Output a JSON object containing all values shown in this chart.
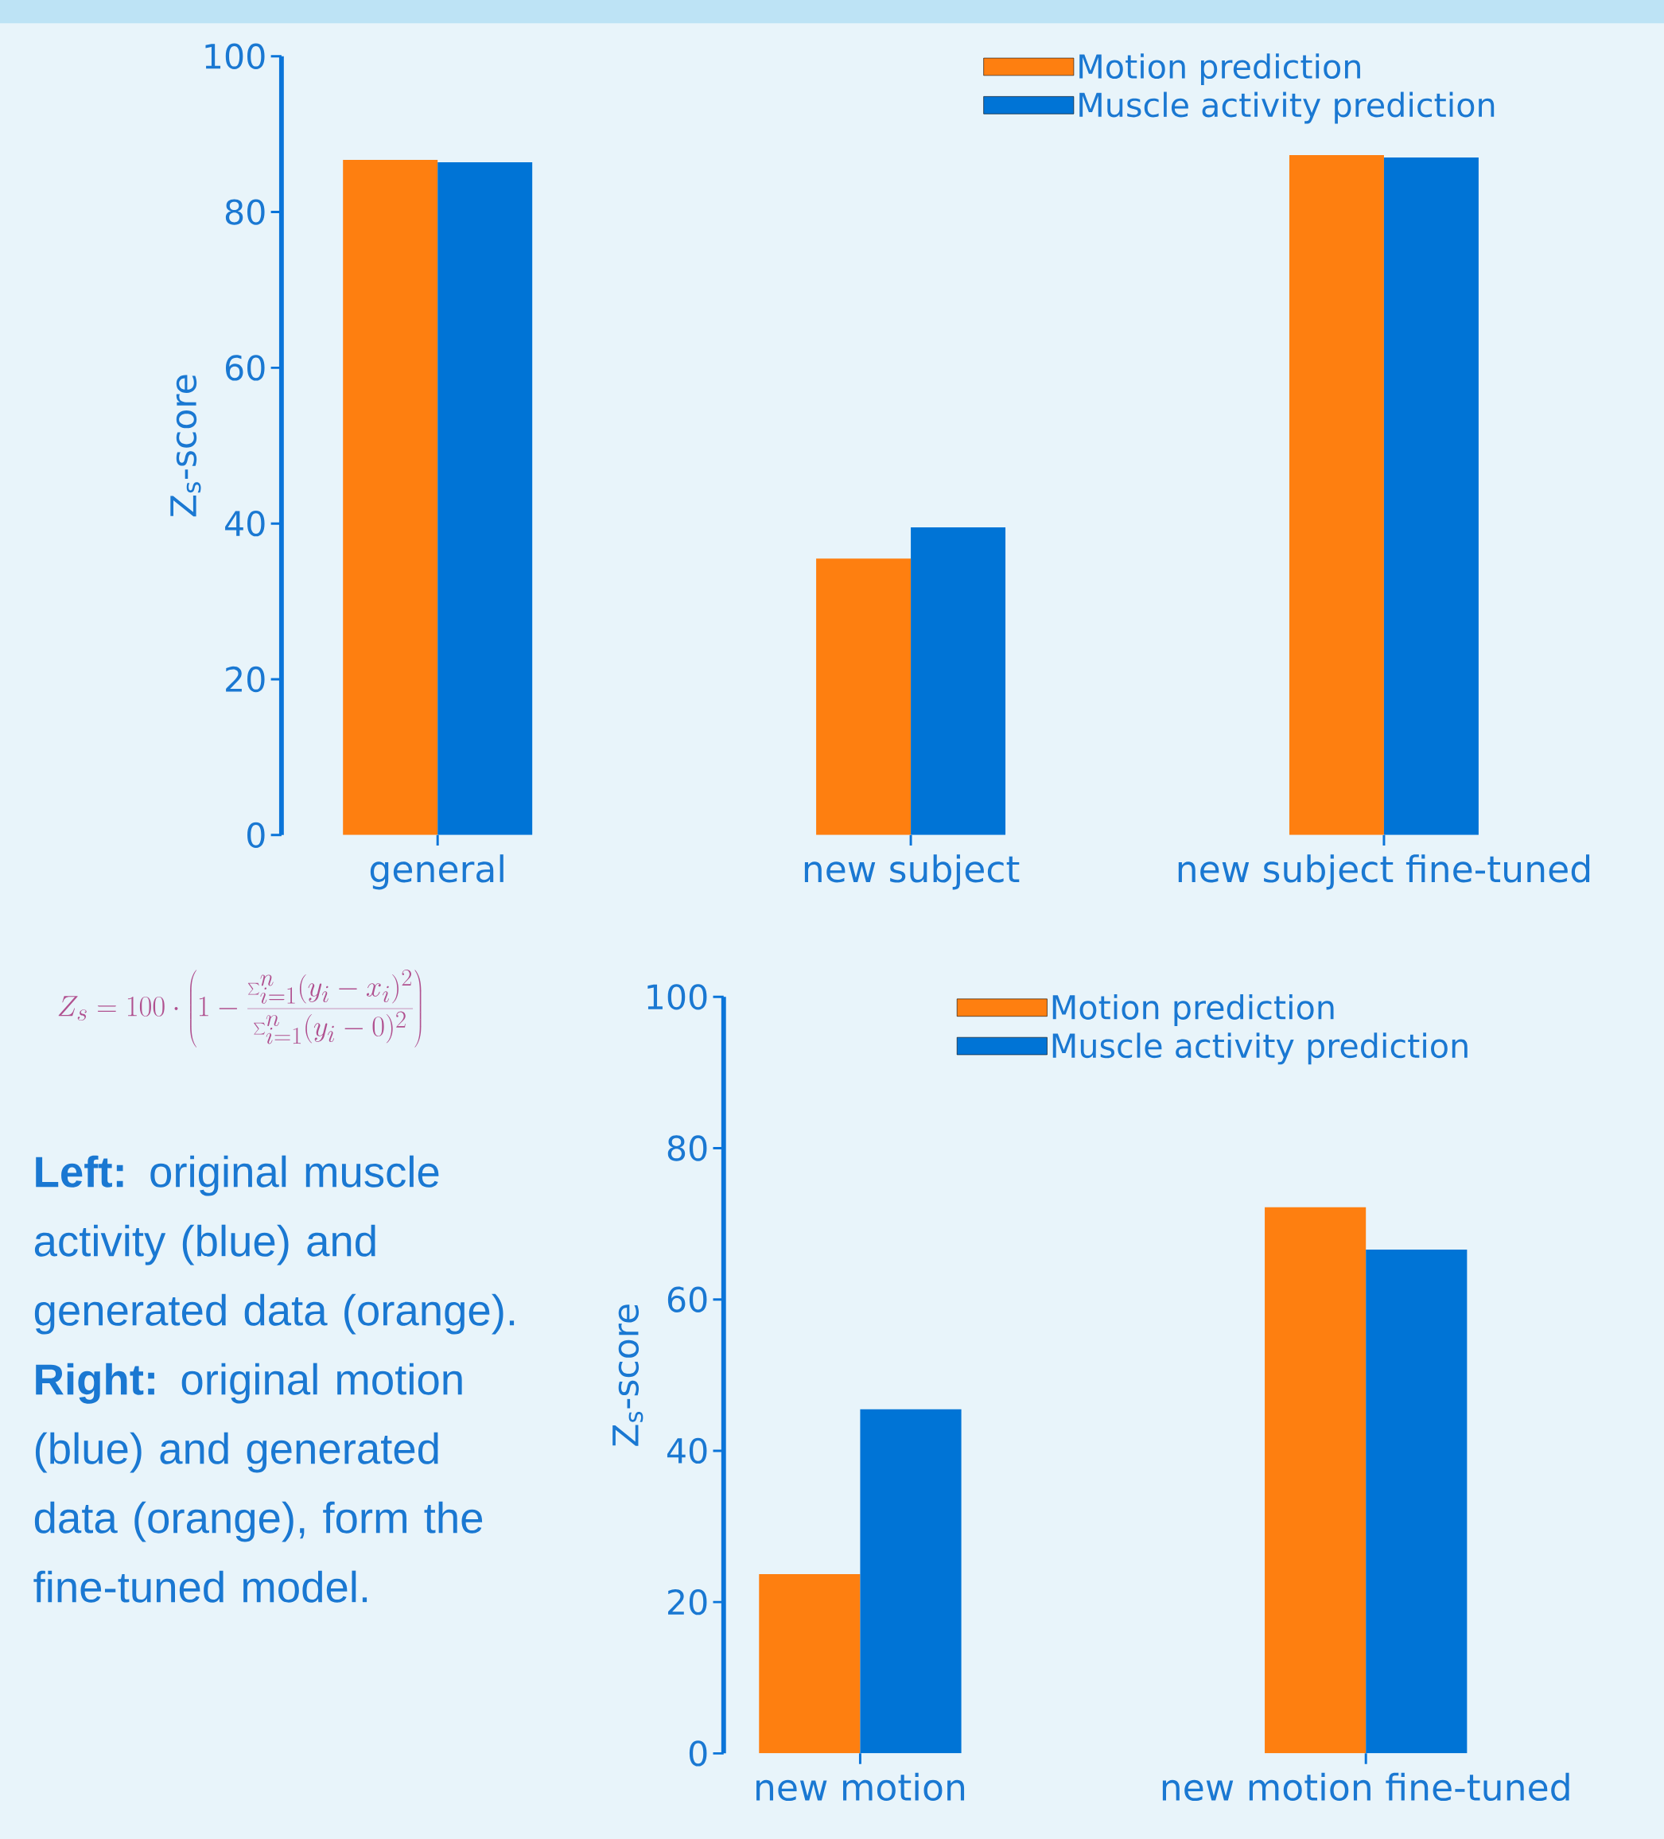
{
  "chart_data": [
    {
      "type": "bar",
      "categories": [
        "general",
        "new subject",
        "new subject fine-tuned"
      ],
      "ylabel": "Z$_{s}$-score",
      "ylim": [
        0,
        100
      ],
      "yticks": [
        0,
        20,
        40,
        60,
        80,
        100
      ],
      "legend": "top right",
      "series": [
        {
          "name": "Motion prediction",
          "color": "#fe7f10",
          "values": [
            86.7,
            35.5,
            87.3
          ]
        },
        {
          "name": "Muscle activity prediction",
          "color": "#0074d6",
          "values": [
            86.4,
            39.5,
            87.0
          ]
        }
      ]
    },
    {
      "type": "other",
      "annotations": [
        "Z_{s} = 100 \\cdot \\left(1-\\frac{\\sum_{i=1}^{n}(y_i-x_i)^2}{\\sum_{i=1}^{n}(y_i-0)^2}\\right)",
        "**Left:** original muscle activity (blue) and generated data (orange). **Right:** original motion (blue) and generated data (orange), form the fine-tuned model."
      ]
    },
    {
      "type": "bar",
      "categories": [
        "new motion",
        "new motion fine-tuned"
      ],
      "ylabel": "Z$_{s}$-score",
      "ylim": [
        0,
        100
      ],
      "yticks": [
        0,
        20,
        40,
        60,
        80,
        100
      ],
      "legend": "top right",
      "series": [
        {
          "name": "Motion prediction",
          "color": "#fe7f10",
          "values": [
            23.7,
            72.2
          ]
        },
        {
          "name": "Muscle activity prediction",
          "color": "#0074d6",
          "values": [
            45.5,
            66.6
          ]
        }
      ]
    }
  ]
}
